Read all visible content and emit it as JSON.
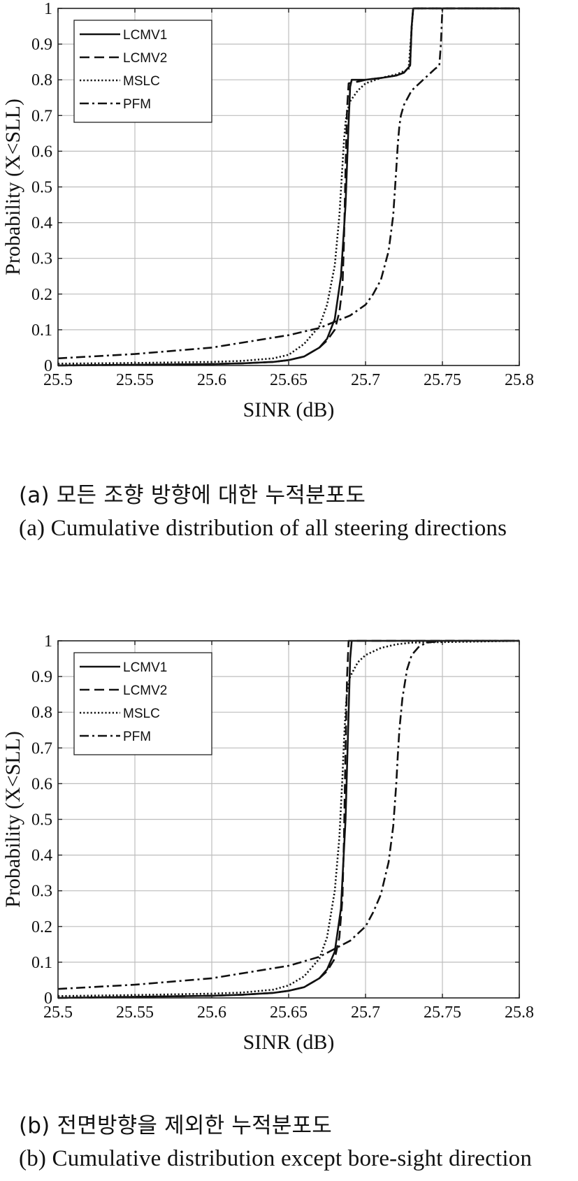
{
  "chart_data": [
    {
      "type": "line",
      "title": "",
      "xlabel": "SINR (dB)",
      "ylabel": "Probability (X<SLL)",
      "xlim": [
        25.5,
        25.8
      ],
      "ylim": [
        0,
        1
      ],
      "xticks": [
        "25.5",
        "25.55",
        "25.6",
        "25.65",
        "25.7",
        "25.75",
        "25.8"
      ],
      "yticks": [
        "0",
        "0.1",
        "0.2",
        "0.3",
        "0.4",
        "0.5",
        "0.6",
        "0.7",
        "0.8",
        "0.9",
        "1"
      ],
      "grid": true,
      "legend_position": "top-left",
      "series": [
        {
          "name": "LCMV1",
          "style": "solid",
          "x": [
            25.5,
            25.55,
            25.6,
            25.62,
            25.64,
            25.65,
            25.66,
            25.67,
            25.675,
            25.68,
            25.684,
            25.687,
            25.689,
            25.69,
            25.691,
            25.7,
            25.71,
            25.72,
            25.725,
            25.729,
            25.73,
            25.731,
            25.8
          ],
          "y": [
            0.0,
            0.002,
            0.004,
            0.006,
            0.01,
            0.015,
            0.025,
            0.05,
            0.075,
            0.13,
            0.25,
            0.45,
            0.68,
            0.78,
            0.8,
            0.8,
            0.805,
            0.812,
            0.82,
            0.84,
            0.95,
            1.0,
            1.0
          ]
        },
        {
          "name": "LCMV2",
          "style": "dashed",
          "x": [
            25.5,
            25.55,
            25.6,
            25.62,
            25.64,
            25.65,
            25.66,
            25.67,
            25.675,
            25.68,
            25.683,
            25.685,
            25.686,
            25.687,
            25.688,
            25.689,
            25.695,
            25.7,
            25.71,
            25.72,
            25.725,
            25.729,
            25.73,
            25.731,
            25.8
          ],
          "y": [
            0.0,
            0.002,
            0.004,
            0.006,
            0.01,
            0.015,
            0.025,
            0.05,
            0.07,
            0.1,
            0.15,
            0.22,
            0.35,
            0.55,
            0.72,
            0.79,
            0.795,
            0.8,
            0.805,
            0.812,
            0.82,
            0.84,
            0.95,
            1.0,
            1.0
          ]
        },
        {
          "name": "MSLC",
          "style": "dotted",
          "x": [
            25.5,
            25.55,
            25.6,
            25.62,
            25.64,
            25.65,
            25.66,
            25.67,
            25.675,
            25.68,
            25.683,
            25.685,
            25.686,
            25.687,
            25.688,
            25.69,
            25.695,
            25.7,
            25.71,
            25.72,
            25.728,
            25.731,
            25.8
          ],
          "y": [
            0.005,
            0.007,
            0.01,
            0.013,
            0.02,
            0.03,
            0.06,
            0.11,
            0.17,
            0.28,
            0.42,
            0.56,
            0.63,
            0.68,
            0.71,
            0.74,
            0.77,
            0.79,
            0.805,
            0.815,
            0.83,
            1.0,
            1.0
          ]
        },
        {
          "name": "PFM",
          "style": "dashdot",
          "x": [
            25.5,
            25.55,
            25.6,
            25.65,
            25.67,
            25.69,
            25.7,
            25.705,
            25.71,
            25.715,
            25.718,
            25.72,
            25.721,
            25.722,
            25.723,
            25.725,
            25.73,
            25.74,
            25.745,
            25.748,
            25.749,
            25.75,
            25.8
          ],
          "y": [
            0.02,
            0.032,
            0.05,
            0.085,
            0.105,
            0.14,
            0.17,
            0.2,
            0.24,
            0.32,
            0.42,
            0.55,
            0.62,
            0.67,
            0.7,
            0.73,
            0.77,
            0.81,
            0.83,
            0.84,
            0.9,
            1.0,
            1.0
          ]
        }
      ]
    },
    {
      "type": "line",
      "title": "",
      "xlabel": "SINR (dB)",
      "ylabel": "Probability (X<SLL)",
      "xlim": [
        25.5,
        25.8
      ],
      "ylim": [
        0,
        1
      ],
      "xticks": [
        "25.5",
        "25.55",
        "25.6",
        "25.65",
        "25.7",
        "25.75",
        "25.8"
      ],
      "yticks": [
        "0",
        "0.1",
        "0.2",
        "0.3",
        "0.4",
        "0.5",
        "0.6",
        "0.7",
        "0.8",
        "0.9",
        "1"
      ],
      "grid": true,
      "legend_position": "top-left",
      "series": [
        {
          "name": "LCMV1",
          "style": "solid",
          "x": [
            25.5,
            25.55,
            25.6,
            25.62,
            25.64,
            25.65,
            25.66,
            25.67,
            25.675,
            25.68,
            25.684,
            25.687,
            25.689,
            25.69,
            25.691,
            25.8
          ],
          "y": [
            0.0,
            0.003,
            0.006,
            0.009,
            0.014,
            0.02,
            0.03,
            0.055,
            0.08,
            0.13,
            0.25,
            0.5,
            0.8,
            0.95,
            1.0,
            1.0
          ]
        },
        {
          "name": "LCMV2",
          "style": "dashed",
          "x": [
            25.5,
            25.55,
            25.6,
            25.62,
            25.64,
            25.65,
            25.66,
            25.67,
            25.675,
            25.68,
            25.683,
            25.685,
            25.686,
            25.687,
            25.688,
            25.689,
            25.8
          ],
          "y": [
            0.0,
            0.003,
            0.006,
            0.009,
            0.014,
            0.02,
            0.03,
            0.055,
            0.075,
            0.11,
            0.17,
            0.28,
            0.45,
            0.7,
            0.9,
            1.0,
            1.0
          ]
        },
        {
          "name": "MSLC",
          "style": "dotted",
          "x": [
            25.5,
            25.55,
            25.6,
            25.62,
            25.64,
            25.65,
            25.66,
            25.67,
            25.675,
            25.68,
            25.683,
            25.685,
            25.686,
            25.687,
            25.688,
            25.69,
            25.695,
            25.7,
            25.71,
            25.72,
            25.73,
            25.8
          ],
          "y": [
            0.005,
            0.008,
            0.012,
            0.015,
            0.023,
            0.035,
            0.06,
            0.11,
            0.17,
            0.3,
            0.45,
            0.62,
            0.72,
            0.8,
            0.86,
            0.9,
            0.94,
            0.96,
            0.98,
            0.99,
            0.995,
            1.0
          ]
        },
        {
          "name": "PFM",
          "style": "dashdot",
          "x": [
            25.5,
            25.55,
            25.6,
            25.65,
            25.67,
            25.69,
            25.7,
            25.705,
            25.71,
            25.715,
            25.718,
            25.72,
            25.721,
            25.722,
            25.724,
            25.727,
            25.73,
            25.735,
            25.74,
            25.75,
            25.8
          ],
          "y": [
            0.025,
            0.037,
            0.055,
            0.09,
            0.115,
            0.16,
            0.2,
            0.24,
            0.29,
            0.38,
            0.48,
            0.6,
            0.68,
            0.75,
            0.84,
            0.92,
            0.96,
            0.985,
            0.995,
            1.0,
            1.0
          ]
        }
      ]
    }
  ],
  "captions": {
    "a_korean": "(a) 모든 조향 방향에 대한 누적분포도",
    "a_english": "(a) Cumulative distribution of all steering directions",
    "b_korean": "(b) 전면방향을 제외한 누적분포도",
    "b_english": "(b) Cumulative distribution except bore-sight direction"
  }
}
